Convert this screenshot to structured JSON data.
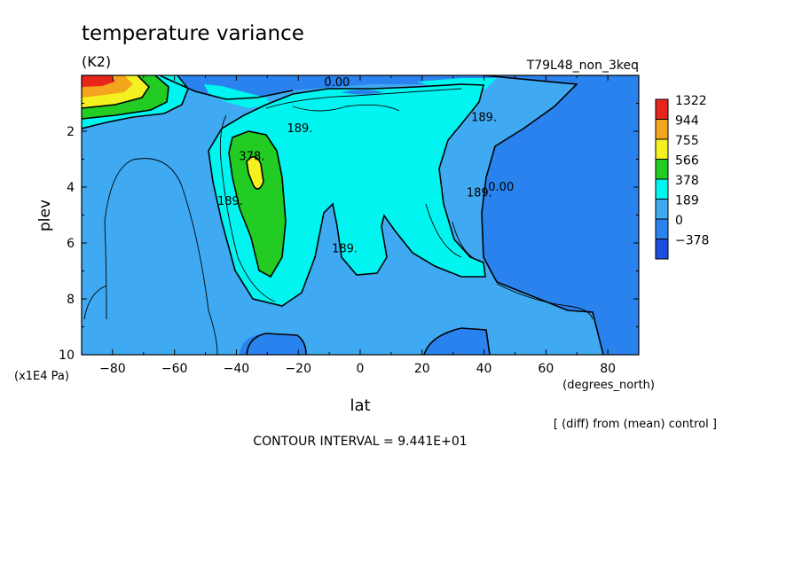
{
  "chart_data": {
    "type": "contour",
    "title": "temperature variance",
    "units": "(K2)",
    "run_label": "T79L48_non_3keq",
    "xlabel": "lat",
    "xunits": "(degrees_north)",
    "ylabel": "plev",
    "yunits": "(x1E4 Pa)",
    "xlim": [
      -90,
      90
    ],
    "ylim": [
      0,
      10
    ],
    "y_inverted": true,
    "x_ticks": [
      -80,
      -60,
      -40,
      -20,
      0,
      20,
      40,
      60,
      80
    ],
    "y_ticks": [
      2,
      4,
      6,
      8,
      10
    ],
    "note": "[ (diff) from (mean) control ]",
    "contour_interval_text": "CONTOUR INTERVAL = 9.441E+01",
    "colorbar": {
      "labels": [
        "1322",
        "944",
        "755",
        "566",
        "378",
        "189",
        "0",
        "-378"
      ],
      "colors": [
        "#e8251b",
        "#f3a51d",
        "#f5f020",
        "#22cc22",
        "#00f5f0",
        "#3faaf2",
        "#2a82ee",
        "#1c4ee0"
      ]
    },
    "contour_labels": [
      {
        "text": "0.00",
        "x": -7.5,
        "y": 0.25
      },
      {
        "text": "189.",
        "x": -19.5,
        "y": 1.9
      },
      {
        "text": "378.",
        "x": -35,
        "y": 2.9
      },
      {
        "text": "189.",
        "x": -42,
        "y": 4.5
      },
      {
        "text": "189.",
        "x": -5,
        "y": 6.2
      },
      {
        "text": "189.",
        "x": 40,
        "y": 1.5
      },
      {
        "text": "189.",
        "x": 38.5,
        "y": 4.2
      },
      {
        "text": "0.00",
        "x": 45.5,
        "y": 4.0
      }
    ]
  }
}
